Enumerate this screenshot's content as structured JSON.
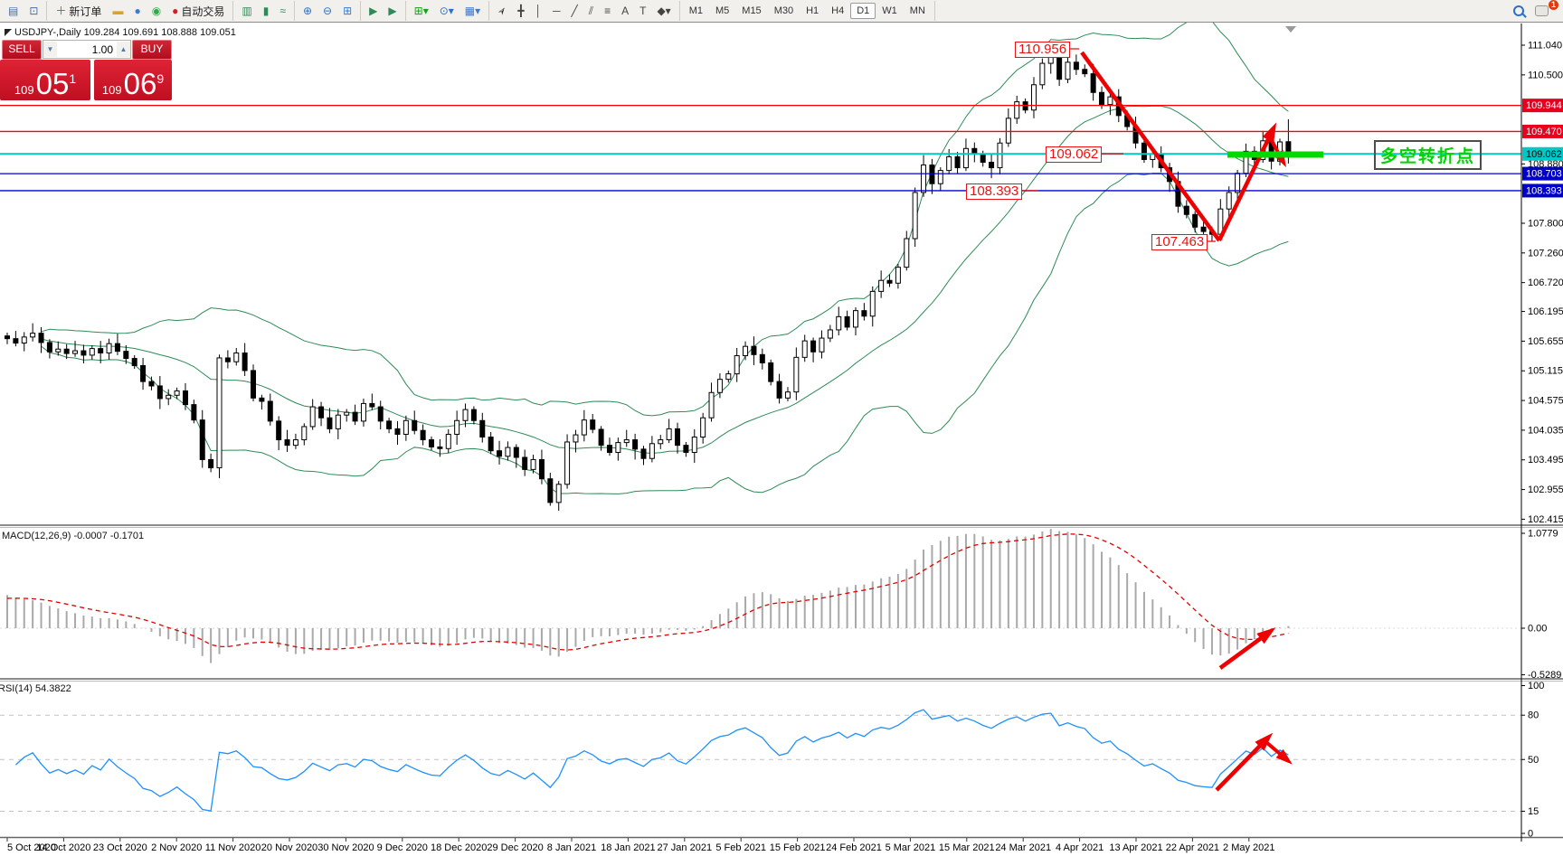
{
  "toolbar": {
    "groups": [
      {
        "name": "windows",
        "items": [
          {
            "name": "chart-window-icon",
            "glyph": "▤",
            "color": "#4a6fa5"
          },
          {
            "name": "profile-preview-icon",
            "glyph": "⊡",
            "color": "#4a6fa5"
          }
        ]
      },
      {
        "name": "trading",
        "items": [
          {
            "name": "new-order-button",
            "glyph": "＋",
            "color": "#18a018",
            "label": "新订单"
          },
          {
            "name": "gold-icon",
            "glyph": "▬",
            "color": "#d8a427"
          },
          {
            "name": "community-icon",
            "glyph": "●",
            "color": "#3a7bd5"
          },
          {
            "name": "signals-icon",
            "glyph": "◉",
            "color": "#2faa4a"
          },
          {
            "name": "autotrade-button",
            "glyph": "●",
            "color": "#cc2222",
            "label": "自动交易"
          }
        ]
      },
      {
        "name": "chart-type",
        "items": [
          {
            "name": "bar-chart-icon",
            "glyph": "▥",
            "color": "#2e8b57"
          },
          {
            "name": "candlestick-icon",
            "glyph": "▮",
            "color": "#2e8b57"
          },
          {
            "name": "line-chart-icon",
            "glyph": "≈",
            "color": "#2e8b57"
          }
        ]
      },
      {
        "name": "zoom",
        "items": [
          {
            "name": "zoom-in-icon",
            "glyph": "⊕",
            "color": "#2a6fc9"
          },
          {
            "name": "zoom-out-icon",
            "glyph": "⊖",
            "color": "#2a6fc9"
          },
          {
            "name": "tile-windows-icon",
            "glyph": "⊞",
            "color": "#3a7bd5"
          }
        ]
      },
      {
        "name": "scroll",
        "items": [
          {
            "name": "auto-scroll-icon",
            "glyph": "▶",
            "color": "#2e8b57"
          },
          {
            "name": "chart-shift-icon",
            "glyph": "▶",
            "color": "#2e8b57"
          }
        ]
      },
      {
        "name": "dropdowns",
        "items": [
          {
            "name": "new-chart-dropdown",
            "glyph": "⊞▾",
            "color": "#18a018"
          },
          {
            "name": "periods-dropdown",
            "glyph": "⊙▾",
            "color": "#2a6fc9"
          },
          {
            "name": "templates-dropdown",
            "glyph": "▦▾",
            "color": "#3a7bd5"
          }
        ]
      },
      {
        "name": "line-studies",
        "items": [
          {
            "name": "cursor-icon",
            "glyph": "➢",
            "color": "#222"
          },
          {
            "name": "crosshair-icon",
            "glyph": "╋",
            "color": "#444"
          },
          {
            "name": "vertical-line-icon",
            "glyph": "│",
            "color": "#444"
          },
          {
            "name": "horizontal-line-icon",
            "glyph": "─",
            "color": "#444"
          },
          {
            "name": "trendline-icon",
            "glyph": "╱",
            "color": "#444"
          },
          {
            "name": "channel-icon",
            "glyph": "⫽",
            "color": "#444"
          },
          {
            "name": "fibonacci-icon",
            "glyph": "≡",
            "color": "#444"
          },
          {
            "name": "text-icon",
            "glyph": "A",
            "color": "#444"
          },
          {
            "name": "text-label-icon",
            "glyph": "T",
            "color": "#444"
          },
          {
            "name": "arrows-dropdown",
            "glyph": "◆▾",
            "color": "#444"
          }
        ]
      }
    ],
    "timeframes": [
      "M1",
      "M5",
      "M15",
      "M30",
      "H1",
      "H4",
      "D1",
      "W1",
      "MN"
    ],
    "active_timeframe": "D1",
    "notification_count": "1"
  },
  "quote_bar": {
    "text": "USDJPY-,Daily  109.284 109.691 108.888 109.051"
  },
  "trade_panel": {
    "sell_label": "SELL",
    "buy_label": "BUY",
    "volume": "1.00",
    "spin_down": "▼",
    "spin_up": "▲",
    "sell_price_prefix": "109",
    "sell_price_big": "05",
    "sell_price_sup": "1",
    "buy_price_prefix": "109",
    "buy_price_big": "06",
    "buy_price_sup": "9"
  },
  "indicators": {
    "macd_label": "MACD(12,26,9) -0.0007 -0.1701",
    "rsi_label": "RSI(14) 54.3822"
  },
  "annotations": {
    "tag_high": "110.956",
    "tag_mid": "109.062",
    "tag_low2": "108.393",
    "tag_low": "107.463",
    "note_text": "多空转折点",
    "note_color": "#00d300",
    "green_bar_color": "#00d900",
    "arrow_color": "#ee0000"
  },
  "colors": {
    "resistance_line": "#ff0000",
    "pivot_line": "#00c8c8",
    "support_line": "#0000d0",
    "badge_red": "#e8001f",
    "badge_cyan": "#00c8c8",
    "badge_blue": "#0000c8",
    "bollinger": "#2e8b57",
    "macd_hist": "#a9a9a9",
    "macd_signal": "#e00000",
    "rsi_line": "#1e90ff"
  },
  "chart_data": {
    "type": "candlestick",
    "symbol": "USDJPY-",
    "timeframe": "Daily",
    "ohlc_display": {
      "open": "109.284",
      "high": "109.691",
      "low": "108.888",
      "close": "109.051"
    },
    "x_dates": [
      "5 Oct 2020",
      "14 Oct 2020",
      "23 Oct 2020",
      "2 Nov 2020",
      "11 Nov 2020",
      "20 Nov 2020",
      "30 Nov 2020",
      "9 Dec 2020",
      "18 Dec 2020",
      "29 Dec 2020",
      "8 Jan 2021",
      "18 Jan 2021",
      "27 Jan 2021",
      "5 Feb 2021",
      "15 Feb 2021",
      "24 Feb 2021",
      "5 Mar 2021",
      "15 Mar 2021",
      "24 Mar 2021",
      "4 Apr 2021",
      "13 Apr 2021",
      "22 Apr 2021",
      "2 May 2021"
    ],
    "price_axis_ticks": [
      111.04,
      110.5,
      108.88,
      107.8,
      107.26,
      106.72,
      106.195,
      105.655,
      105.115,
      104.575,
      104.035,
      103.495,
      102.955,
      102.415
    ],
    "price_badges": [
      {
        "price": 109.944,
        "text": "109.944",
        "bg": "#e8001f",
        "fg": "#ffffff"
      },
      {
        "price": 109.47,
        "text": "109.470",
        "bg": "#e8001f",
        "fg": "#ffffff"
      },
      {
        "price": 109.062,
        "text": "109.062",
        "bg": "#00c8c8",
        "fg": "#000000"
      },
      {
        "price": 108.703,
        "text": "108.703",
        "bg": "#0000c8",
        "fg": "#ffffff"
      },
      {
        "price": 108.393,
        "text": "108.393",
        "bg": "#0000c8",
        "fg": "#ffffff"
      }
    ],
    "horizontal_levels": [
      {
        "price": 109.944,
        "color": "#ff0000",
        "width": 1.3
      },
      {
        "price": 109.47,
        "color": "#ff0000",
        "width": 1.3
      },
      {
        "price": 109.062,
        "color": "#00c8c8",
        "width": 2
      },
      {
        "price": 108.703,
        "color": "#0000d0",
        "width": 1.3
      },
      {
        "price": 108.393,
        "color": "#0000d0",
        "width": 1.3
      }
    ],
    "marked_prices": [
      110.956,
      109.062,
      108.393,
      107.463
    ],
    "first_open": 105.75,
    "closes": [
      105.7,
      105.62,
      105.73,
      105.8,
      105.63,
      105.46,
      105.51,
      105.43,
      105.48,
      105.4,
      105.52,
      105.44,
      105.61,
      105.47,
      105.34,
      105.21,
      104.92,
      104.84,
      104.61,
      104.67,
      104.75,
      104.5,
      104.22,
      103.5,
      103.35,
      105.35,
      105.28,
      105.44,
      105.12,
      104.62,
      104.56,
      104.2,
      103.86,
      103.76,
      103.86,
      104.1,
      104.46,
      104.26,
      104.06,
      104.31,
      104.36,
      104.2,
      104.52,
      104.46,
      104.2,
      104.06,
      103.96,
      104.21,
      104.03,
      103.86,
      103.73,
      103.7,
      103.96,
      104.21,
      104.41,
      104.21,
      103.91,
      103.66,
      103.56,
      103.72,
      103.54,
      103.32,
      103.5,
      103.15,
      102.72,
      103.05,
      103.82,
      103.95,
      104.22,
      104.05,
      103.76,
      103.63,
      103.81,
      103.86,
      103.69,
      103.52,
      103.79,
      103.86,
      104.06,
      103.76,
      103.63,
      103.91,
      104.26,
      104.72,
      104.96,
      105.06,
      105.39,
      105.56,
      105.41,
      105.26,
      104.92,
      104.62,
      104.73,
      105.36,
      105.66,
      105.46,
      105.71,
      105.86,
      106.1,
      105.91,
      106.21,
      106.11,
      106.56,
      106.76,
      106.71,
      107.0,
      107.52,
      108.36,
      108.86,
      108.52,
      108.76,
      109.01,
      108.81,
      109.16,
      109.06,
      108.91,
      108.81,
      109.26,
      109.71,
      110.01,
      109.86,
      110.32,
      110.71,
      110.86,
      110.42,
      110.73,
      110.6,
      110.52,
      110.18,
      109.96,
      110.1,
      109.76,
      109.56,
      109.26,
      108.96,
      109.06,
      108.81,
      108.56,
      108.11,
      107.96,
      107.73,
      107.65,
      107.6,
      108.06,
      108.36,
      108.71,
      109.11,
      108.96,
      109.3,
      108.93,
      109.28,
      109.05
    ],
    "wick_up": [
      0.06,
      0.14,
      0.09,
      0.18,
      0.11
    ],
    "wick_dn": [
      0.1,
      0.06,
      0.15,
      0.08,
      0.19,
      0.12,
      0.07
    ],
    "overrides": {
      "125": {
        "h": 110.956
      },
      "142": {
        "l": 107.463
      },
      "151": {
        "o": 109.284,
        "h": 109.691,
        "l": 108.888,
        "c": 109.051
      }
    },
    "bollinger": {
      "period": 20,
      "deviation": 2
    },
    "macd": {
      "fast": 12,
      "slow": 26,
      "signal": 9,
      "current_main": -0.0007,
      "current_signal": -0.1701,
      "axis_max": 1.0779,
      "axis_min": -0.5289,
      "axis_labels": [
        "1.0779",
        "0.00",
        "-0.5289"
      ]
    },
    "rsi": {
      "period": 14,
      "current": 54.3822,
      "axis_labels": [
        "100",
        "80",
        "50",
        "15",
        "0"
      ],
      "dashed_levels": [
        80,
        50,
        15
      ]
    }
  }
}
